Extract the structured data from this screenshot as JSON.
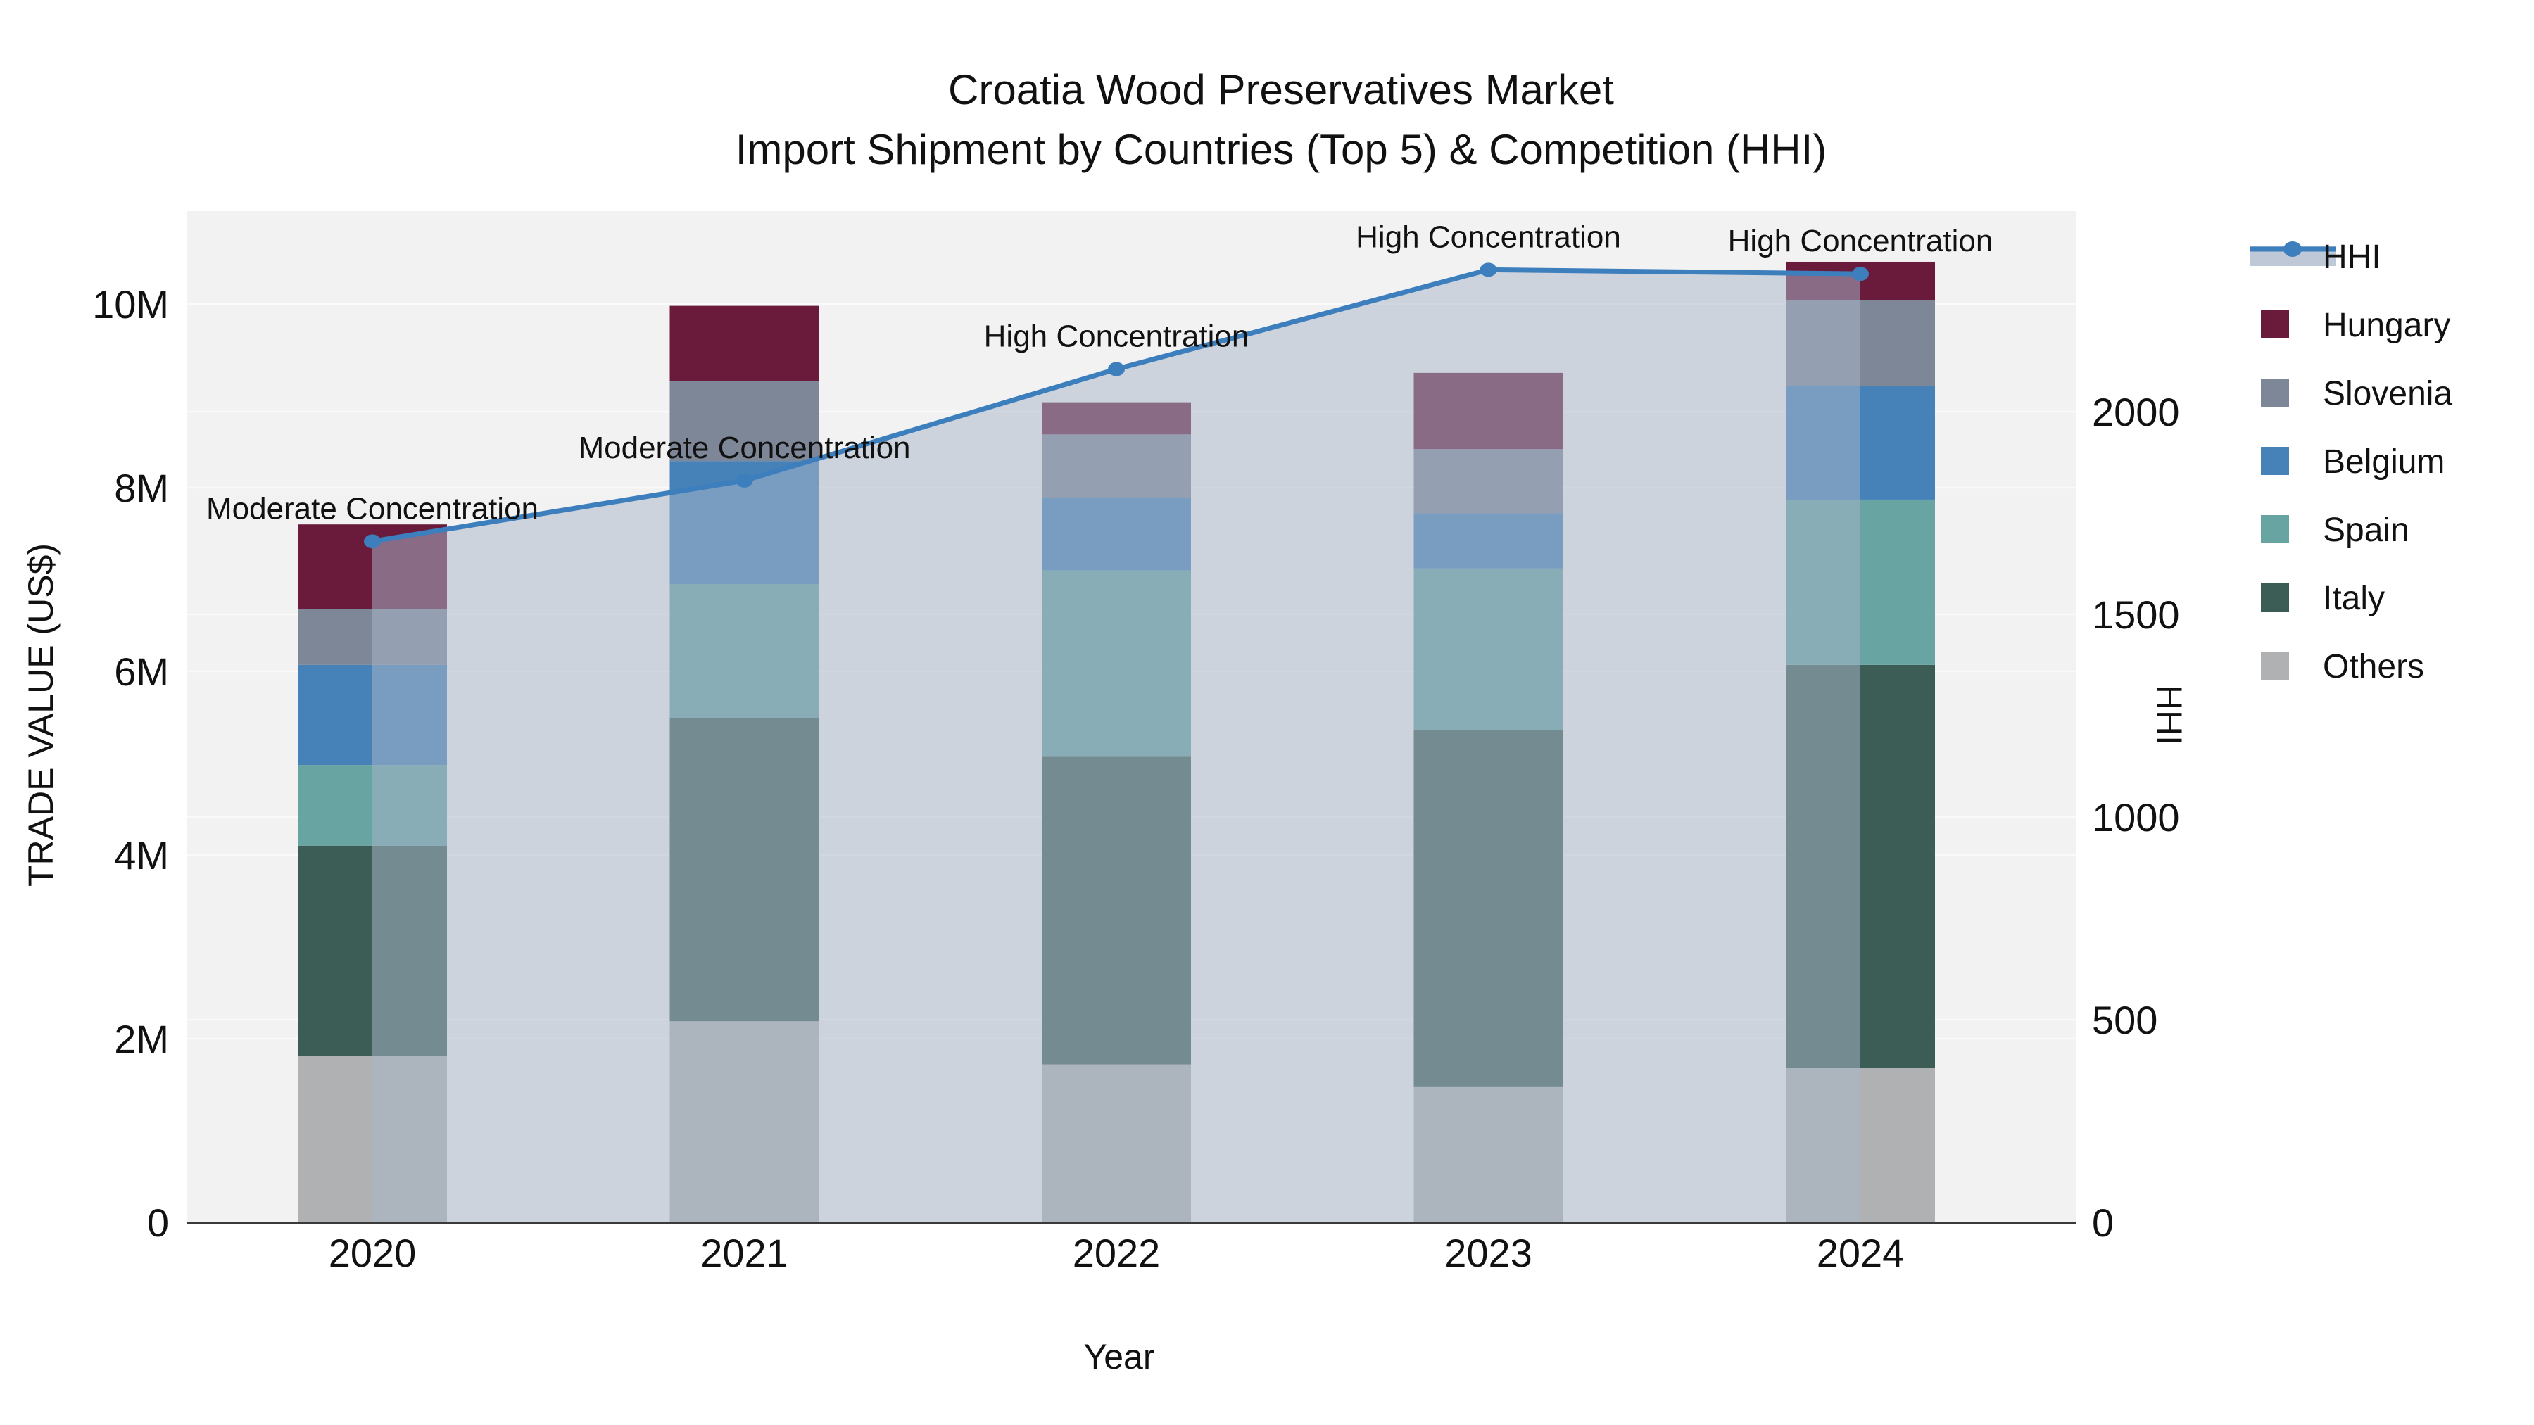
{
  "title": {
    "line1": "Croatia Wood Preservatives Market",
    "line2": "Import Shipment by Countries (Top 5) & Competition (HHI)"
  },
  "axes": {
    "x": {
      "label": "Year",
      "tick_labels": [
        "2020",
        "2021",
        "2022",
        "2023",
        "2024"
      ]
    },
    "y_left": {
      "label": "TRADE VALUE (US$)",
      "tick_labels": [
        "0",
        "2M",
        "4M",
        "6M",
        "8M",
        "10M"
      ],
      "tick_values_m": [
        0,
        2,
        4,
        6,
        8,
        10
      ],
      "range_m": [
        0,
        11.0
      ]
    },
    "y_right": {
      "label": "HHI",
      "tick_labels": [
        "0",
        "500",
        "1000",
        "1500",
        "2000"
      ],
      "tick_values": [
        0,
        500,
        1000,
        1500,
        2000
      ],
      "range": [
        0,
        2500
      ]
    }
  },
  "legend": {
    "items": [
      {
        "label": "HHI",
        "type": "line",
        "color": "#3d7ebd"
      },
      {
        "label": "Hungary",
        "type": "swatch",
        "color": "#6a1b3b"
      },
      {
        "label": "Slovenia",
        "type": "swatch",
        "color": "#7d8797"
      },
      {
        "label": "Belgium",
        "type": "swatch",
        "color": "#4682b8"
      },
      {
        "label": "Spain",
        "type": "swatch",
        "color": "#68a4a1"
      },
      {
        "label": "Italy",
        "type": "swatch",
        "color": "#3c5c56"
      },
      {
        "label": "Others",
        "type": "swatch",
        "color": "#b0b1b2"
      }
    ]
  },
  "annotations": [
    {
      "year": "2020",
      "text": "Moderate Concentration"
    },
    {
      "year": "2021",
      "text": "Moderate Concentration"
    },
    {
      "year": "2022",
      "text": "High Concentration"
    },
    {
      "year": "2023",
      "text": "High Concentration"
    },
    {
      "year": "2024",
      "text": "High Concentration"
    }
  ],
  "chart_data": {
    "type": "bar+line",
    "title": "Croatia Wood Preservatives Market — Import Shipment by Countries (Top 5) & Competition (HHI)",
    "categories": [
      "2020",
      "2021",
      "2022",
      "2023",
      "2024"
    ],
    "unit": "million US$",
    "stacked": true,
    "stack_order_bottom_to_top": [
      "Others",
      "Italy",
      "Spain",
      "Belgium",
      "Slovenia",
      "Hungary"
    ],
    "series": [
      {
        "name": "Others",
        "color": "#b0b1b2",
        "values": [
          1.81,
          2.19,
          1.72,
          1.48,
          1.68
        ]
      },
      {
        "name": "Italy",
        "color": "#3c5c56",
        "values": [
          2.29,
          3.3,
          3.35,
          3.88,
          4.39
        ]
      },
      {
        "name": "Spain",
        "color": "#68a4a1",
        "values": [
          0.88,
          1.46,
          2.03,
          1.76,
          1.8
        ]
      },
      {
        "name": "Belgium",
        "color": "#4682b8",
        "values": [
          1.09,
          1.34,
          0.79,
          0.6,
          1.24
        ]
      },
      {
        "name": "Slovenia",
        "color": "#7d8797",
        "values": [
          0.61,
          0.87,
          0.69,
          0.7,
          0.93
        ]
      },
      {
        "name": "Hungary",
        "color": "#6a1b3b",
        "values": [
          0.92,
          0.82,
          0.35,
          0.83,
          0.42
        ]
      }
    ],
    "bar_totals_m": [
      7.6,
      9.98,
      8.93,
      9.25,
      10.46
    ],
    "line": {
      "name": "HHI",
      "axis": "right",
      "color": "#3d7ebd",
      "area_fill": "rgba(168,182,202,0.52)",
      "values": [
        1680,
        1830,
        2105,
        2350,
        2340
      ]
    },
    "xlabel": "Year",
    "ylabel_left": "TRADE VALUE (US$)",
    "ylabel_right": "HHI",
    "ylim_left_m": [
      0,
      11.0
    ],
    "ylim_right": [
      0,
      2500
    ],
    "grid": true,
    "legend_position": "right",
    "plot_background": "#f2f2f2",
    "gridline_color": "#fafafa",
    "axis_line_color": "#3a3a3a"
  }
}
